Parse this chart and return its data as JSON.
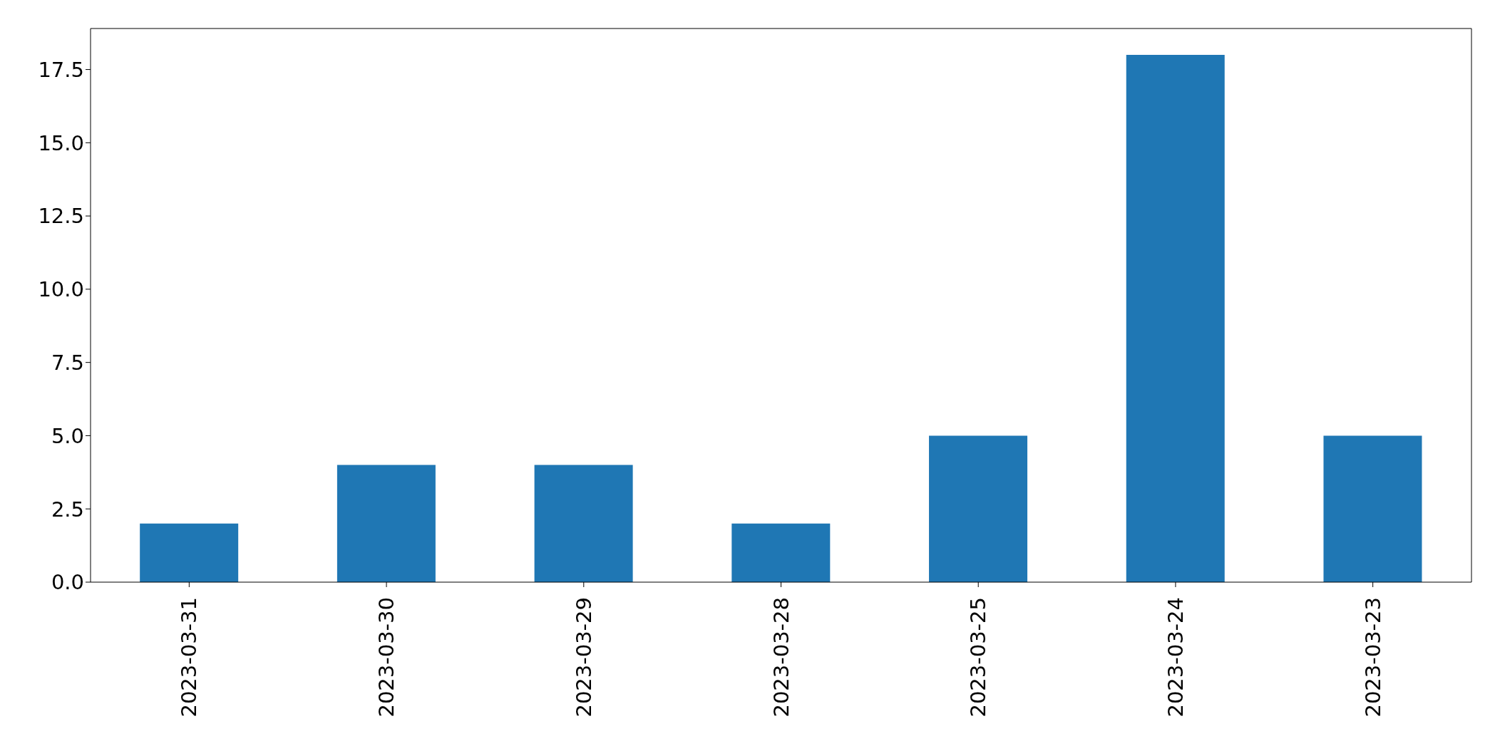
{
  "chart_data": {
    "type": "bar",
    "categories": [
      "2023-03-31",
      "2023-03-30",
      "2023-03-29",
      "2023-03-28",
      "2023-03-25",
      "2023-03-24",
      "2023-03-23"
    ],
    "values": [
      2,
      4,
      4,
      2,
      5,
      18,
      5
    ],
    "color": "#1f77b4",
    "ylim": [
      0,
      18.9
    ],
    "yticks": [
      {
        "value": 0,
        "label": "0.0"
      },
      {
        "value": 2.5,
        "label": "2.5"
      },
      {
        "value": 5,
        "label": "5.0"
      },
      {
        "value": 7.5,
        "label": "7.5"
      },
      {
        "value": 10,
        "label": "10.0"
      },
      {
        "value": 12.5,
        "label": "12.5"
      },
      {
        "value": 15,
        "label": "15.0"
      },
      {
        "value": 17.5,
        "label": "17.5"
      }
    ],
    "grid": false,
    "legend": false
  }
}
